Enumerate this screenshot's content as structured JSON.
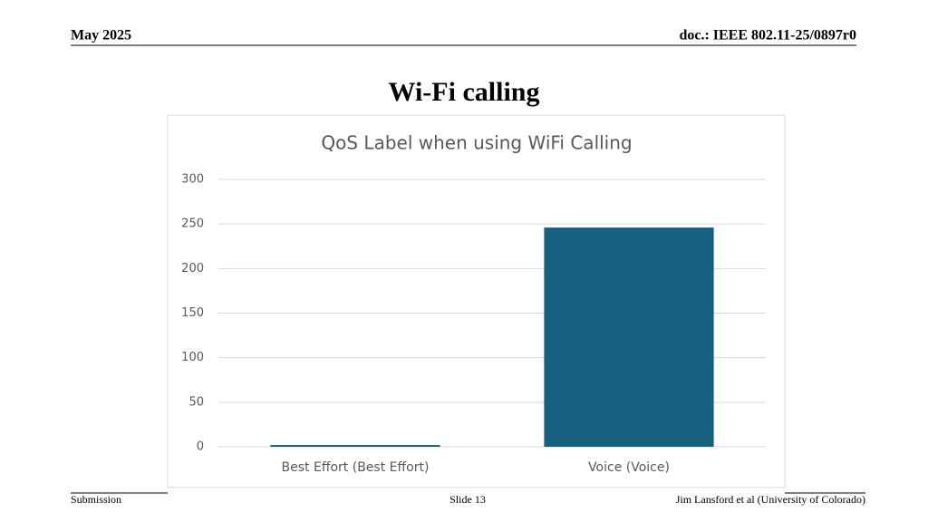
{
  "header": {
    "date": "May 2025",
    "doc": "doc.: IEEE 802.11-25/0897r0"
  },
  "slide_title": "Wi-Fi calling",
  "chart_data": {
    "type": "bar",
    "title": "QoS Label when using WiFi Calling",
    "categories": [
      "Best Effort (Best Effort)",
      "Voice (Voice)"
    ],
    "values": [
      2,
      246
    ],
    "color": "#17607f",
    "ylim": [
      0,
      300
    ],
    "yticks": [
      0,
      50,
      100,
      150,
      200,
      250,
      300
    ],
    "grid": true
  },
  "footer": {
    "left": "Submission",
    "center": "Slide 13",
    "right": "Jim Lansford et al (University of Colorado)"
  }
}
